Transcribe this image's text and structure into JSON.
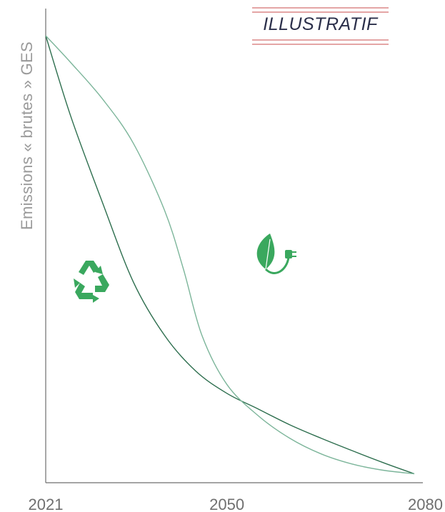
{
  "badge": {
    "text": "ILLUSTRATIF"
  },
  "icons": {
    "recycle": "recycle-icon",
    "leaf_plug": "leaf-plug-icon"
  },
  "colors": {
    "axis": "#6f6f6f",
    "series_a": "#2d6e4e",
    "series_b": "#7cb59a",
    "icon_green": "#3aa85e",
    "badge_lines": "#e4a5a5"
  },
  "chart_data": {
    "type": "line",
    "title": "",
    "xlabel": "",
    "ylabel": "Emissions « brutes » GES",
    "xlim": [
      2021,
      2080
    ],
    "ylim": [
      0,
      100
    ],
    "xticks": [
      2021,
      2050,
      2080
    ],
    "grid": false,
    "series": [
      {
        "x": [
          2021,
          2025,
          2030,
          2035,
          2040,
          2045,
          2050,
          2055,
          2060,
          2065,
          2070,
          2075,
          2080
        ],
        "values": [
          100,
          82,
          63,
          45,
          33,
          25,
          20,
          16.5,
          13,
          10,
          7.2,
          4.5,
          2
        ],
        "color": "#2d6e4e"
      },
      {
        "x": [
          2021,
          2025,
          2030,
          2035,
          2040,
          2043,
          2046,
          2050,
          2055,
          2060,
          2065,
          2070,
          2075,
          2080
        ],
        "values": [
          100,
          94,
          86,
          76,
          61,
          48,
          33,
          22,
          15,
          10,
          6.5,
          4.2,
          2.8,
          2
        ],
        "color": "#7cb59a"
      }
    ]
  }
}
